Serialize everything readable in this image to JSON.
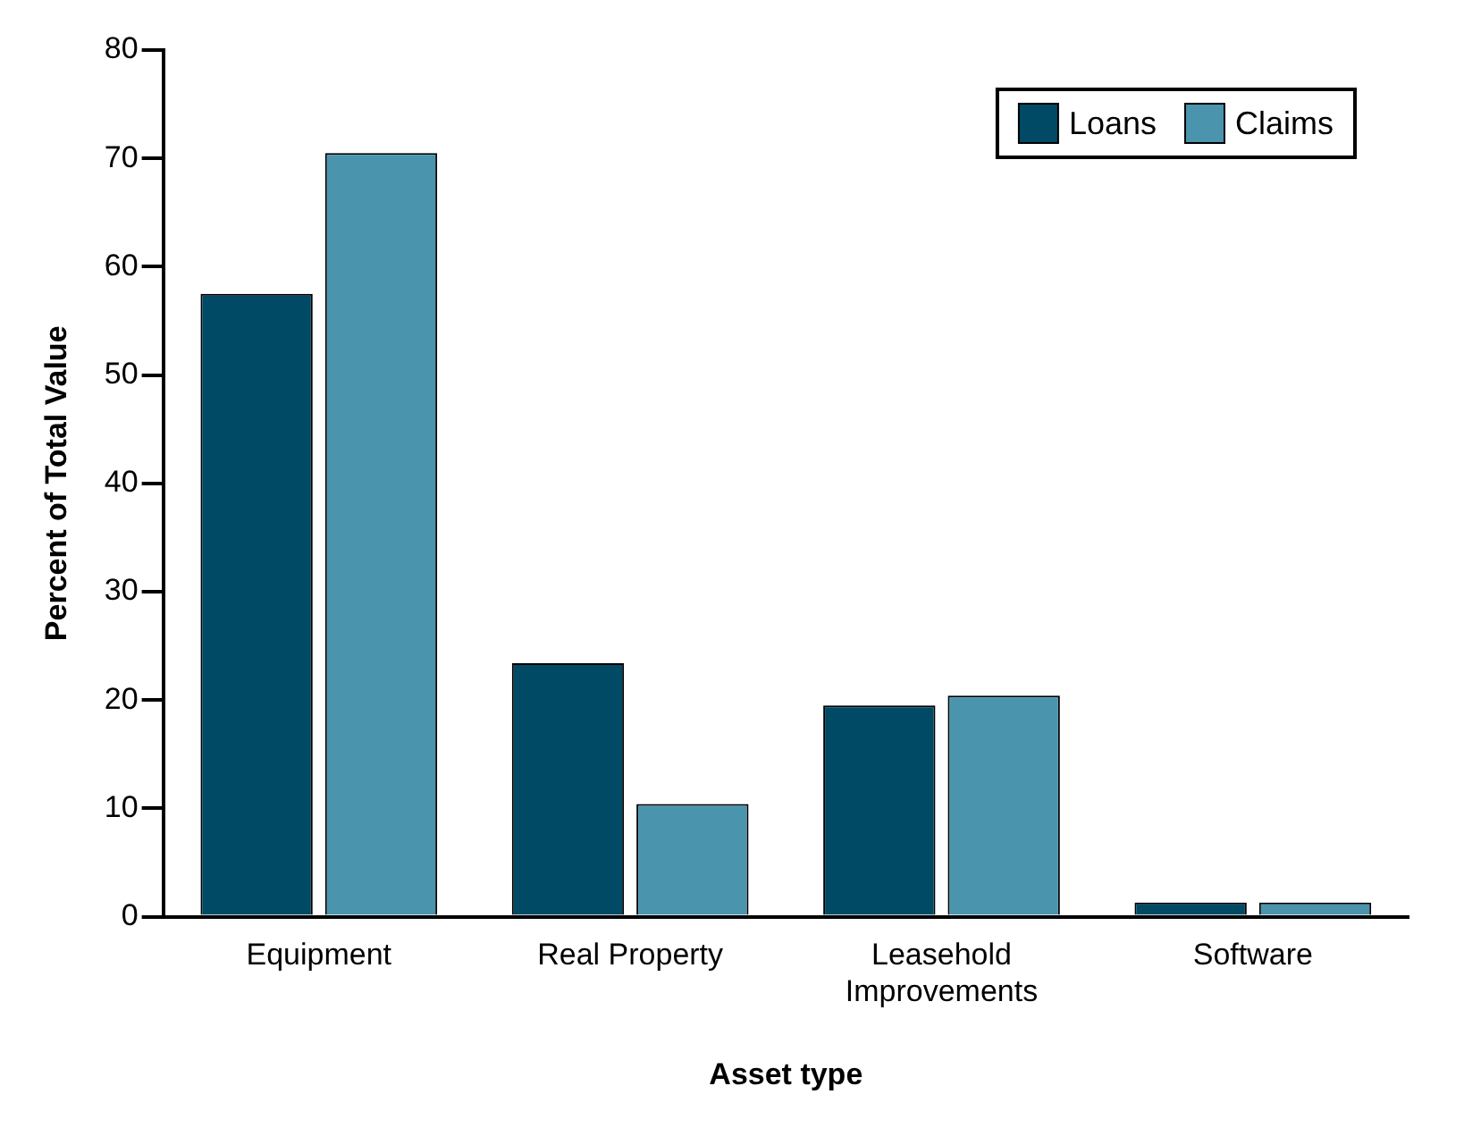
{
  "chart_data": {
    "type": "bar",
    "xlabel": "Asset type",
    "ylabel": "Percent of Total Value",
    "categories": [
      "Equipment",
      "Real Property",
      "Leasehold Improvements",
      "Software"
    ],
    "series": [
      {
        "name": "Loans",
        "color": "#004a66",
        "values": [
          57.5,
          23.4,
          19.5,
          1.3
        ]
      },
      {
        "name": "Claims",
        "color": "#4a94ae",
        "values": [
          70.5,
          10.4,
          20.4,
          1.3
        ]
      }
    ],
    "ylim": [
      0,
      80
    ],
    "yticks": [
      0,
      10,
      20,
      30,
      40,
      50,
      60,
      70,
      80
    ],
    "grid": false,
    "legend": "top right"
  }
}
